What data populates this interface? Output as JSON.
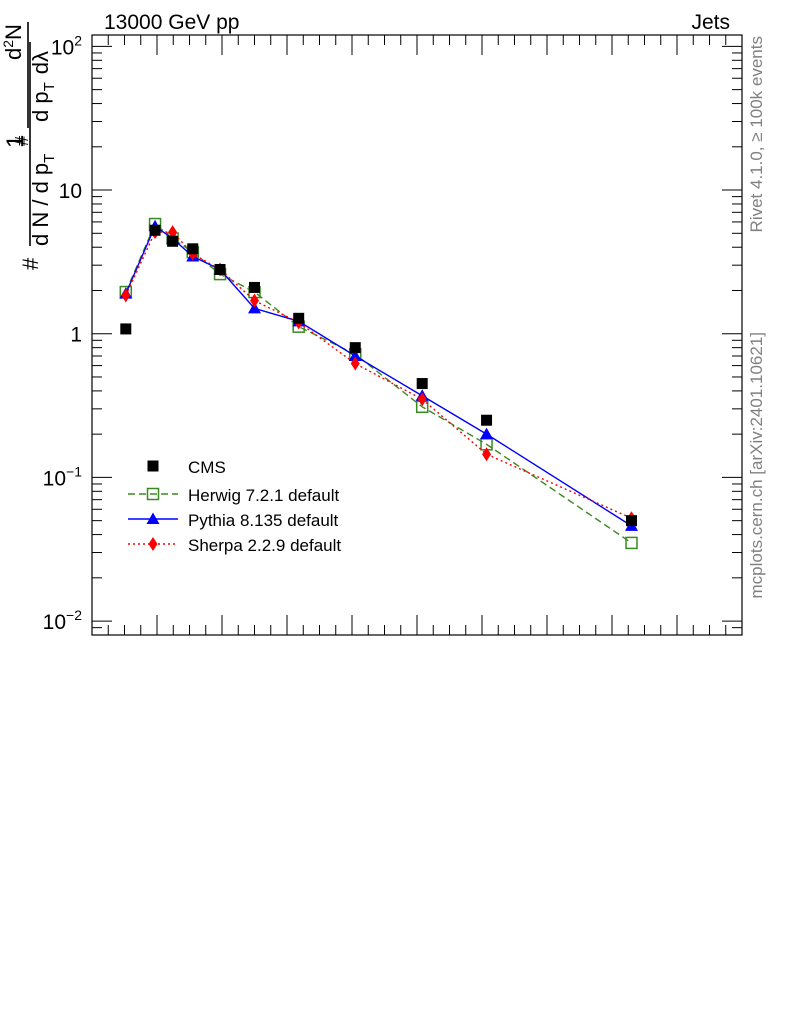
{
  "header": {
    "left": "13000 GeV pp",
    "right": "Jets"
  },
  "side_text": {
    "rivet": "Rivet 4.1.0, ≥ 100k events",
    "mcplots": "mcplots.cern.ch [arXiv:2401.10621]"
  },
  "y_axis_label": {
    "hash1": "#",
    "one": "1",
    "dn": "d N / d p",
    "t1": "T",
    "hash2": "#",
    "d2n": "d",
    "sup2": "2",
    "n": "N",
    "dpt": "d p",
    "t2": "T",
    "dlambda": "dλ"
  },
  "chart_data": {
    "type": "scatter",
    "y_scale": "log",
    "ylim": [
      0.008,
      120
    ],
    "xlim": [
      0,
      10
    ],
    "y_ticks": [
      {
        "value": 100,
        "base": "10",
        "exp": "2"
      },
      {
        "value": 10,
        "base": "10",
        "exp": ""
      },
      {
        "value": 1,
        "base": "1",
        "exp": ""
      },
      {
        "value": 0.1,
        "base": "10",
        "exp": "−1"
      },
      {
        "value": 0.01,
        "base": "10",
        "exp": "−2"
      }
    ],
    "legend": {
      "position": "bottom-left"
    },
    "series": [
      {
        "name": "CMS",
        "color": "#000000",
        "marker": "square-filled",
        "line": "none",
        "x": [
          0.52,
          0.97,
          1.24,
          1.55,
          1.97,
          2.5,
          3.18,
          4.05,
          5.08,
          6.07,
          8.3
        ],
        "y": [
          1.08,
          5.25,
          4.4,
          3.9,
          2.8,
          2.1,
          1.28,
          0.8,
          0.45,
          0.25,
          0.05
        ]
      },
      {
        "name": "Herwig 7.2.1 default",
        "color": "#3a8a22",
        "marker": "square-open",
        "line": "dashed",
        "x": [
          0.52,
          0.97,
          1.24,
          1.55,
          1.97,
          2.5,
          3.18,
          4.05,
          5.08,
          6.07,
          8.3
        ],
        "y": [
          1.95,
          5.8,
          4.6,
          3.7,
          2.6,
          1.95,
          1.12,
          0.72,
          0.31,
          0.17,
          0.035
        ]
      },
      {
        "name": "Pythia 8.135 default",
        "color": "#0000ff",
        "marker": "triangle-filled",
        "line": "solid",
        "x": [
          0.52,
          0.97,
          1.24,
          1.55,
          1.97,
          2.5,
          3.18,
          4.05,
          5.08,
          6.07,
          8.3
        ],
        "y": [
          1.9,
          5.6,
          4.6,
          3.45,
          2.8,
          1.5,
          1.22,
          0.7,
          0.37,
          0.2,
          0.046
        ]
      },
      {
        "name": "Sherpa 2.2.9 default",
        "color": "#ff0000",
        "marker": "diamond-filled",
        "line": "dotted",
        "x": [
          0.52,
          0.97,
          1.24,
          1.55,
          1.97,
          2.5,
          3.18,
          4.05,
          5.08,
          6.07,
          8.3
        ],
        "y": [
          1.85,
          5.1,
          5.1,
          3.6,
          2.8,
          1.7,
          1.2,
          0.62,
          0.35,
          0.145,
          0.052
        ]
      }
    ]
  }
}
